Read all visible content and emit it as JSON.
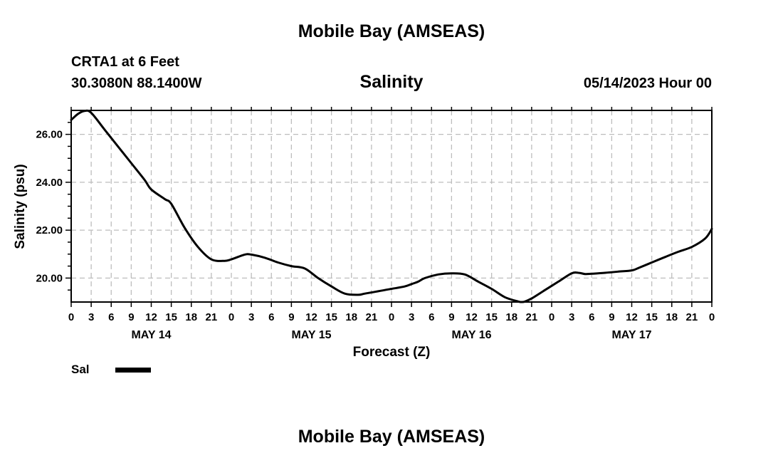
{
  "header": {
    "title": "Mobile Bay (AMSEAS)",
    "station": "CRTA1 at 6 Feet",
    "coords": "30.3080N  88.1400W",
    "subtitle": "Salinity",
    "datetime": "05/14/2023 Hour 00"
  },
  "footer": {
    "title": "Mobile Bay (AMSEAS)"
  },
  "legend": {
    "label": "Sal",
    "color": "#000000"
  },
  "chart_data": {
    "type": "line",
    "title": "Salinity",
    "xlabel": "Forecast (Z)",
    "ylabel": "Salinity (psu)",
    "xlim": [
      0,
      96
    ],
    "ylim": [
      19.0,
      27.0
    ],
    "grid": true,
    "legend_position": "bottom-left",
    "x_tick_labels": [
      "0",
      "3",
      "6",
      "9",
      "12",
      "15",
      "18",
      "21",
      "0",
      "3",
      "6",
      "9",
      "12",
      "15",
      "18",
      "21",
      "0",
      "3",
      "6",
      "9",
      "12",
      "15",
      "18",
      "21",
      "0",
      "3",
      "6",
      "9",
      "12",
      "15",
      "18",
      "21",
      "0"
    ],
    "y_tick_labels": [
      "20.00",
      "22.00",
      "24.00",
      "26.00"
    ],
    "y_ticks": [
      20,
      22,
      24,
      26
    ],
    "day_labels": [
      {
        "text": "MAY 14",
        "hour": 12
      },
      {
        "text": "MAY 15",
        "hour": 36
      },
      {
        "text": "MAY 16",
        "hour": 60
      },
      {
        "text": "MAY 17",
        "hour": 84
      }
    ],
    "series": [
      {
        "name": "Sal",
        "color": "#000000",
        "x": [
          0,
          1,
          2,
          3,
          5,
          7,
          9,
          11,
          12,
          14,
          15,
          17,
          19,
          21,
          23,
          24,
          26,
          27,
          29,
          31,
          33,
          35,
          37,
          39,
          41,
          43,
          44,
          46,
          48,
          50,
          51,
          52,
          53,
          55,
          57,
          59,
          61,
          63,
          65,
          67,
          67.5,
          68,
          69,
          71,
          73,
          75,
          76,
          77,
          78,
          80,
          82,
          84,
          85,
          87,
          89,
          91,
          93,
          95,
          96
        ],
        "y": [
          26.6,
          26.85,
          26.98,
          26.9,
          26.2,
          25.5,
          24.8,
          24.1,
          23.7,
          23.3,
          23.1,
          22.1,
          21.3,
          20.78,
          20.72,
          20.78,
          20.98,
          20.98,
          20.85,
          20.65,
          20.5,
          20.4,
          20.0,
          19.65,
          19.35,
          19.3,
          19.35,
          19.45,
          19.55,
          19.65,
          19.75,
          19.85,
          20.0,
          20.15,
          20.2,
          20.15,
          19.85,
          19.55,
          19.2,
          19.02,
          19.0,
          19.02,
          19.15,
          19.5,
          19.85,
          20.2,
          20.22,
          20.17,
          20.18,
          20.22,
          20.27,
          20.32,
          20.42,
          20.65,
          20.88,
          21.1,
          21.3,
          21.65,
          22.05
        ]
      }
    ]
  }
}
